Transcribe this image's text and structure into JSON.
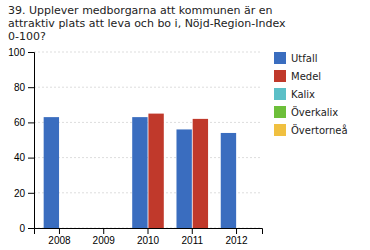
{
  "chart_data": {
    "type": "bar",
    "title": "39. Upplever medborgarna att kommunen är en\nattraktiv plats att leva och bo i, Nöjd-Region-Index\n0-100?",
    "categories": [
      "2008",
      "2009",
      "2010",
      "2011",
      "2012"
    ],
    "series": [
      {
        "name": "Utfall",
        "color": "#3a6dbf",
        "values": [
          63,
          0,
          63,
          56,
          54
        ]
      },
      {
        "name": "Medel",
        "color": "#c0392b",
        "values": [
          0,
          0,
          65,
          62,
          0
        ]
      },
      {
        "name": "Kalix",
        "color": "#5bbfc7",
        "values": [
          null,
          null,
          null,
          null,
          null
        ]
      },
      {
        "name": "Överkalix",
        "color": "#6dbf3a",
        "values": [
          null,
          null,
          null,
          null,
          null
        ]
      },
      {
        "name": "Övertorneå",
        "color": "#f0c040",
        "values": [
          null,
          null,
          null,
          null,
          null
        ]
      }
    ],
    "ylim": [
      0,
      100
    ],
    "yticks": [
      0,
      20,
      40,
      60,
      80,
      100
    ],
    "grid": true
  }
}
